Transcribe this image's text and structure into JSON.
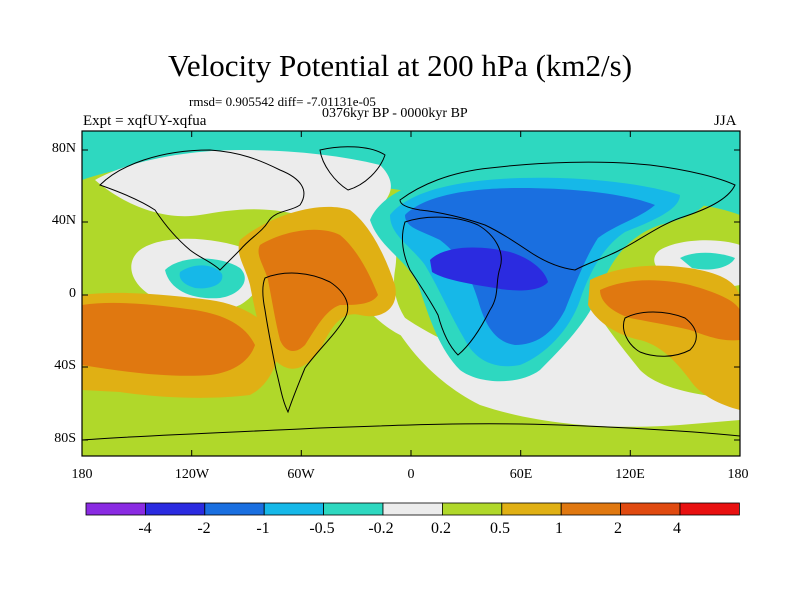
{
  "title": "Velocity Potential at 200 hPa (km2/s)",
  "stats_line": "rmsd= 0.905542 diff= -7.01131e-05",
  "period": "0376kyr BP - 0000kyr BP",
  "experiment": "Expt = xqfUY-xqfua",
  "season": "JJA",
  "axes": {
    "lat_labels": [
      "80N",
      "40N",
      "0",
      "40S",
      "80S"
    ],
    "lon_labels": [
      "180",
      "120W",
      "60W",
      "0",
      "60E",
      "120E",
      "180"
    ]
  },
  "colorbar": {
    "labels": [
      "-4",
      "-2",
      "-1",
      "-0.5",
      "-0.2",
      "0.2",
      "0.5",
      "1",
      "2",
      "4"
    ],
    "colors": [
      "#8a2be2",
      "#2b2be0",
      "#1a6fe0",
      "#16b8e8",
      "#2ed8c0",
      "#ececec",
      "#b0d82a",
      "#e0b014",
      "#e07810",
      "#e04a10",
      "#e81010"
    ]
  },
  "map_colors": {
    "ocean_north": "#2ed8c0",
    "neutral": "#ececec",
    "weak_positive": "#b0d82a",
    "positive": "#e0b014",
    "strong_positive": "#e07810",
    "weak_negative": "#2ed8c0",
    "moderate_negative": "#16b8e8",
    "negative": "#1a6fe0",
    "strong_negative": "#2b2be0"
  }
}
